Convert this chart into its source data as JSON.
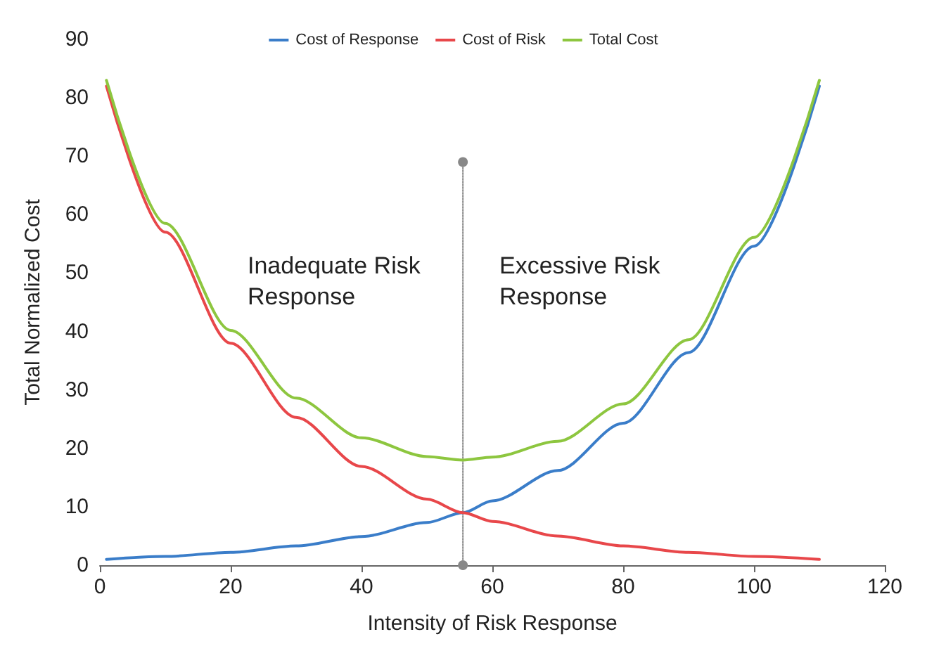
{
  "chart_data": {
    "type": "line",
    "xlabel": "Intensity of Risk Response",
    "ylabel": "Total Normalized Cost",
    "x": [
      1,
      10,
      20,
      30,
      40,
      50,
      55.5,
      60,
      70,
      80,
      90,
      100,
      110
    ],
    "series": [
      {
        "name": "Cost of Response",
        "color": "#3a7dc9",
        "values": [
          1.0,
          1.5,
          2.2,
          3.3,
          4.9,
          7.3,
          9,
          11,
          16.2,
          24.3,
          36.4,
          54.6,
          82
        ]
      },
      {
        "name": "Cost of Risk",
        "color": "#e8474a",
        "values": [
          82,
          57,
          38,
          25.3,
          16.9,
          11.3,
          9,
          7.5,
          5.0,
          3.3,
          2.2,
          1.5,
          1.0
        ]
      },
      {
        "name": "Total Cost",
        "color": "#8dc63f",
        "values": [
          83,
          58.5,
          40.2,
          28.6,
          21.8,
          18.6,
          18,
          18.5,
          21.2,
          27.6,
          38.6,
          56.1,
          83
        ]
      },
      {
        "color": "#888888",
        "x": [
          55.5,
          55.5
        ],
        "values": [
          0,
          69
        ],
        "marker": "circle",
        "line_style": "dotted"
      }
    ],
    "annotations": [
      "Inadequate Risk\nResponse",
      "Excessive Risk\nResponse"
    ],
    "xlim": [
      0,
      120
    ],
    "xticks": [
      0,
      20,
      40,
      60,
      80,
      100,
      120
    ],
    "ylim": [
      0,
      90
    ],
    "yticks": [
      0,
      10,
      20,
      30,
      40,
      50,
      60,
      70,
      80,
      90
    ],
    "grid": false,
    "legend": "top",
    "marker": "none",
    "line_style": "solid"
  }
}
